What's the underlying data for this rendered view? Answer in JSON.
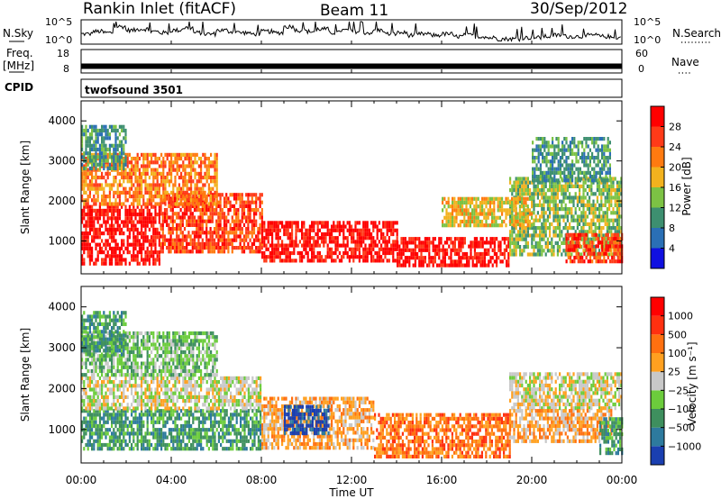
{
  "header": {
    "station": "Rankin Inlet (fitACF)",
    "beam": "Beam 11",
    "date": "30/Sep/2012"
  },
  "side_labels": {
    "nsky": "N.Sky",
    "nsearch": "N.Search",
    "freq_line1": "Freq.",
    "freq_line2": "[MHz]",
    "nave": "Nave",
    "cpid": "CPID",
    "cpid_value": "twofsound 3501"
  },
  "chart_data": [
    {
      "type": "line",
      "title": "",
      "ylabel": "N.Sky",
      "ylabel_right": "N.Search",
      "y_ticks_left": [
        "10^5",
        "10^0"
      ],
      "y_ticks_right": [
        "10^5",
        "10^0"
      ],
      "series": [
        {
          "name": "N.Sky",
          "style": "solid",
          "x_hours": [
            0,
            0.5,
            1,
            1.5,
            2,
            2.5,
            3,
            3.5,
            4,
            4.5,
            5,
            5.5,
            6,
            6.5,
            7,
            7.5,
            8,
            8.5,
            9,
            9.5,
            10,
            10.5,
            11,
            11.5,
            12,
            12.5,
            13,
            13.5,
            14,
            14.5,
            15,
            15.5,
            16,
            16.5,
            17,
            17.5,
            18,
            18.5,
            19,
            19.5,
            20,
            20.5,
            21,
            21.5,
            22,
            22.5,
            23,
            23.5,
            24
          ],
          "values_log10": [
            0.6,
            0.8,
            0.7,
            1.2,
            0.9,
            1.0,
            0.8,
            0.7,
            0.9,
            1.1,
            0.7,
            0.6,
            0.9,
            0.8,
            0.7,
            0.6,
            0.8,
            0.7,
            1.2,
            0.9,
            0.8,
            1.0,
            0.7,
            0.9,
            0.8,
            0.7,
            0.9,
            0.6,
            0.7,
            0.5,
            0.6,
            0.5,
            0.6,
            0.4,
            0.5,
            0.4,
            0.3,
            0.2,
            0.2,
            0.3,
            0.3,
            0.4,
            0.5,
            0.4,
            0.4,
            0.5,
            0.4,
            0.3,
            0.3
          ]
        },
        {
          "name": "N.Search",
          "style": "dotted",
          "x_hours": [],
          "values_log10": []
        }
      ]
    },
    {
      "type": "line",
      "ylabel": "Freq. [MHz]",
      "ylabel_right": "Nave",
      "y_ticks_left": [
        "18",
        "8"
      ],
      "y_ticks_right": [
        "60",
        "0"
      ],
      "series": [
        {
          "name": "Freq.",
          "style": "solid",
          "constant": 10.5
        },
        {
          "name": "Nave",
          "style": "dotted",
          "constant": null
        }
      ]
    },
    {
      "type": "heatmap",
      "ylabel": "Slant Range [km]",
      "y_ticks": [
        1000,
        2000,
        3000,
        4000
      ],
      "ylim": [
        180,
        4500
      ],
      "colorbar_label": "Power [dB]",
      "colorbar_ticks": [
        "4",
        "8",
        "12",
        "16",
        "20",
        "24",
        "28"
      ],
      "colorbar_colors": [
        "#1010e0",
        "#2a6fb5",
        "#3d8f70",
        "#7cc244",
        "#f2b21e",
        "#ff7a10",
        "#ff3a18",
        "#ff0000"
      ],
      "regions": [
        {
          "t0": 0,
          "t1": 3.5,
          "r0": 450,
          "r1": 1900,
          "level": 7
        },
        {
          "t0": 3.5,
          "t1": 8,
          "r0": 700,
          "r1": 2200,
          "level": 6
        },
        {
          "t0": 8,
          "t1": 14,
          "r0": 550,
          "r1": 1500,
          "level": 7
        },
        {
          "t0": 14,
          "t1": 19,
          "r0": 350,
          "r1": 1100,
          "level": 7
        },
        {
          "t0": 19,
          "t1": 24,
          "r0": 700,
          "r1": 2600,
          "level": 3
        },
        {
          "t0": 21.5,
          "t1": 24,
          "r0": 500,
          "r1": 1200,
          "level": 6
        },
        {
          "t0": 0,
          "t1": 6,
          "r0": 1900,
          "r1": 3200,
          "level": 5
        },
        {
          "t0": 0,
          "t1": 2,
          "r0": 2800,
          "r1": 3900,
          "level": 2
        },
        {
          "t0": 16,
          "t1": 20,
          "r0": 1400,
          "r1": 2100,
          "level": 4
        },
        {
          "t0": 20,
          "t1": 23.5,
          "r0": 2500,
          "r1": 3600,
          "level": 2
        }
      ]
    },
    {
      "type": "heatmap",
      "ylabel": "Slant Range [km]",
      "xlabel": "Time UT",
      "x_ticks": [
        "00:00",
        "04:00",
        "08:00",
        "12:00",
        "16:00",
        "20:00",
        "00:00"
      ],
      "y_ticks": [
        1000,
        2000,
        3000,
        4000
      ],
      "ylim": [
        180,
        4500
      ],
      "colorbar_label": "Velocity [m s⁻¹]",
      "colorbar_ticks": [
        "1000",
        "500",
        "100",
        "25",
        "−25",
        "−100",
        "−500",
        "−1000"
      ],
      "colorbar_colors": [
        "#1a3fb0",
        "#2d7a9e",
        "#3e8f5e",
        "#6ccc3c",
        "#c8c8c8",
        "#ffa020",
        "#ff7010",
        "#ff3010",
        "#ff0000"
      ],
      "regions": [
        {
          "t0": 0,
          "t1": 8,
          "r0": 550,
          "r1": 1500,
          "level": 2
        },
        {
          "t0": 0,
          "t1": 8,
          "r0": 1500,
          "r1": 2300,
          "level": 4
        },
        {
          "t0": 8,
          "t1": 13,
          "r0": 550,
          "r1": 1800,
          "level": 5
        },
        {
          "t0": 9,
          "t1": 11,
          "r0": 900,
          "r1": 1600,
          "level": 0
        },
        {
          "t0": 13,
          "t1": 19,
          "r0": 350,
          "r1": 1400,
          "level": 6
        },
        {
          "t0": 19,
          "t1": 24,
          "r0": 1500,
          "r1": 2400,
          "level": 4
        },
        {
          "t0": 19,
          "t1": 23.5,
          "r0": 700,
          "r1": 1500,
          "level": 5
        },
        {
          "t0": 23,
          "t1": 24,
          "r0": 400,
          "r1": 1300,
          "level": 2
        },
        {
          "t0": 0,
          "t1": 6,
          "r0": 2300,
          "r1": 3400,
          "level": 3
        },
        {
          "t0": 0,
          "t1": 2,
          "r0": 2800,
          "r1": 3900,
          "level": 2
        }
      ]
    }
  ]
}
